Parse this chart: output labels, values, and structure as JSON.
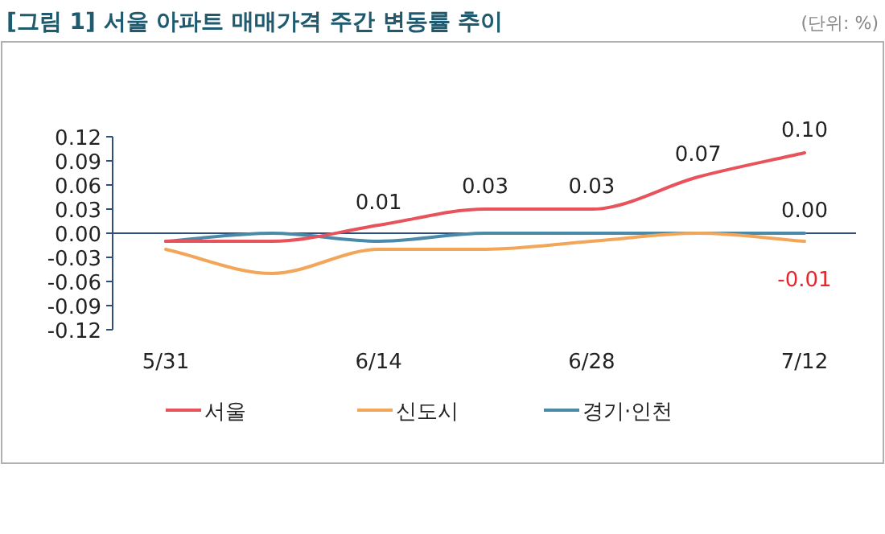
{
  "chart_data": {
    "type": "line",
    "title": "[그림 1] 서울 아파트 매매가격 주간 변동률 추이",
    "subtitle": "(단위: %)",
    "categories": [
      "5/31",
      null,
      "6/14",
      null,
      "6/28",
      null,
      "7/12"
    ],
    "series": [
      {
        "name": "서울",
        "color": "#e8525a",
        "values": [
          -0.01,
          -0.01,
          0.01,
          0.03,
          0.03,
          0.07,
          0.1
        ],
        "value_labels": [
          null,
          null,
          "0.01",
          "0.03",
          "0.03",
          "0.07",
          "0.10"
        ]
      },
      {
        "name": "신도시",
        "color": "#f2a65a",
        "values": [
          -0.02,
          -0.05,
          -0.02,
          -0.02,
          -0.01,
          0.0,
          -0.01
        ],
        "value_labels": [
          null,
          null,
          null,
          null,
          null,
          null,
          "-0.01"
        ]
      },
      {
        "name": "경기·인천",
        "color": "#4a8aa8",
        "values": [
          -0.01,
          0.0,
          -0.01,
          0.0,
          0.0,
          0.0,
          0.0
        ],
        "value_labels": [
          null,
          null,
          null,
          null,
          null,
          null,
          "0.00"
        ]
      }
    ],
    "ylim": [
      -0.12,
      0.12
    ],
    "yticks": [
      {
        "value": 0.12,
        "label": "0.12"
      },
      {
        "value": 0.09,
        "label": "0.09"
      },
      {
        "value": 0.06,
        "label": "0.06"
      },
      {
        "value": 0.03,
        "label": "0.03"
      },
      {
        "value": 0,
        "label": "0.00"
      },
      {
        "value": -0.03,
        "label": "-0.03"
      },
      {
        "value": -0.06,
        "label": "-0.06"
      },
      {
        "value": -0.09,
        "label": "-0.09"
      },
      {
        "value": -0.12,
        "label": "-0.12"
      }
    ],
    "ref_lines": [
      {
        "axis": "y",
        "value": 0,
        "color": "#2d4e7e"
      }
    ],
    "legend": "bottom",
    "grid": false,
    "marker": "none",
    "line_style": "solid"
  }
}
